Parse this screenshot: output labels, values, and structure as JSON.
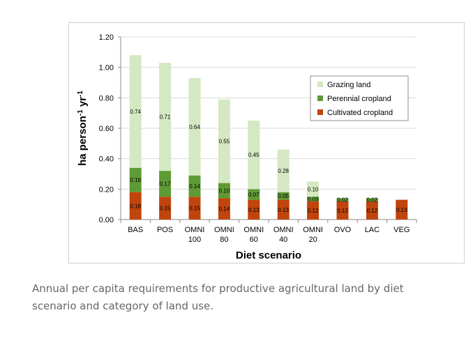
{
  "caption": "Annual per capita requirements for productive agricultural land by diet scenario and category of land use.",
  "chart_data": {
    "type": "bar",
    "stacked": true,
    "categories": [
      [
        "BAS"
      ],
      [
        "POS"
      ],
      [
        "OMNI",
        "100"
      ],
      [
        "OMNI",
        "80"
      ],
      [
        "OMNI",
        "60"
      ],
      [
        "OMNI",
        "40"
      ],
      [
        "OMNI",
        "20"
      ],
      [
        "OVO"
      ],
      [
        "LAC"
      ],
      [
        "VEG"
      ]
    ],
    "series": [
      {
        "name": "Cultivated cropland",
        "color": "#c0450c",
        "values": [
          0.18,
          0.15,
          0.15,
          0.14,
          0.13,
          0.13,
          0.12,
          0.12,
          0.12,
          0.13
        ],
        "labels": [
          "0.18",
          "0.15",
          "0.15",
          "0.14",
          "0.13",
          "0.13",
          "0.12",
          "0.12",
          "0.12",
          "0.13"
        ]
      },
      {
        "name": "Perennial cropland",
        "color": "#5e9b35",
        "values": [
          0.16,
          0.17,
          0.14,
          0.1,
          0.07,
          0.05,
          0.03,
          0.02,
          0.02,
          0
        ],
        "labels": [
          "0.16",
          "0.17",
          "0.14",
          "0.10",
          "0.07",
          "0.05",
          "0.03",
          "0.02",
          "0.02",
          ""
        ]
      },
      {
        "name": "Grazing land",
        "color": "#d4e8c2",
        "values": [
          0.74,
          0.71,
          0.64,
          0.55,
          0.45,
          0.28,
          0.1,
          0,
          0,
          0
        ],
        "labels": [
          "0.74",
          "0.71",
          "0.64",
          "0.55",
          "0.45",
          "0.28",
          "0.10",
          "",
          "",
          ""
        ]
      }
    ],
    "xlabel": "Diet scenario",
    "ylabel_parts": [
      {
        "t": "ha person",
        "sup": false
      },
      {
        "t": "-1",
        "sup": true
      },
      {
        "t": " yr",
        "sup": false
      },
      {
        "t": "-1",
        "sup": true
      }
    ],
    "ylim": [
      0,
      1.2
    ],
    "yticks": [
      0,
      0.2,
      0.4,
      0.6,
      0.8,
      1.0,
      1.2
    ],
    "ytick_labels": [
      "0.00",
      "0.20",
      "0.40",
      "0.60",
      "0.80",
      "1.00",
      "1.20"
    ],
    "grid": true,
    "legend": {
      "placement": "top-right",
      "order": [
        "Grazing land",
        "Perennial cropland",
        "Cultivated cropland"
      ]
    }
  }
}
